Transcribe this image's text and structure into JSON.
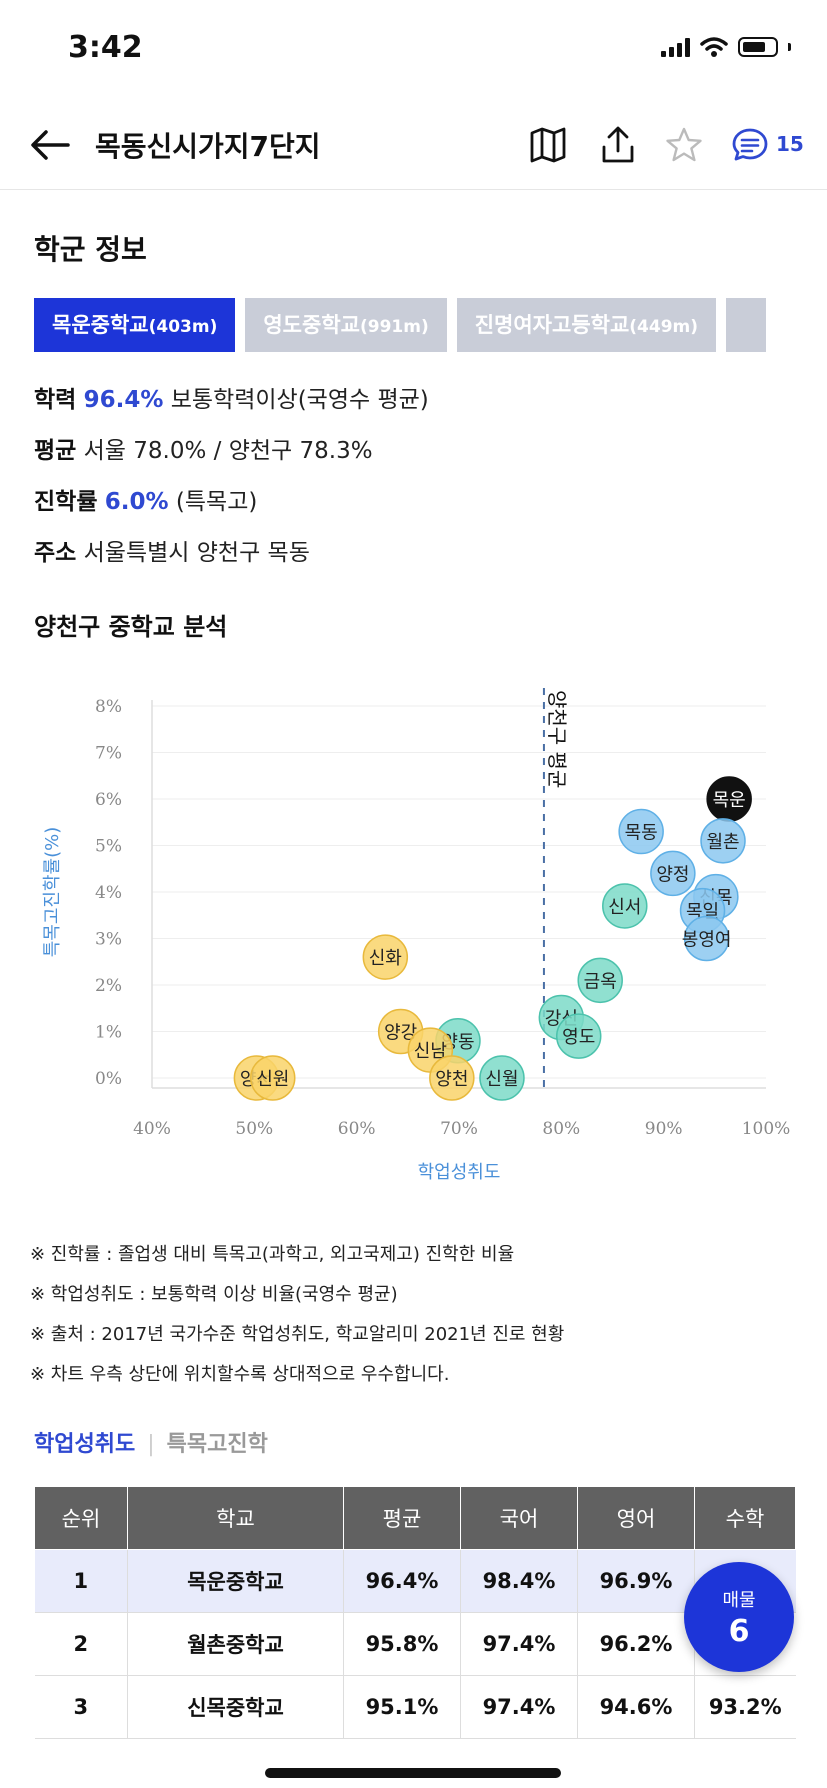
{
  "status": {
    "time": "3:42"
  },
  "header": {
    "title": "목동신시가지7단지",
    "chat_count": "15"
  },
  "section": {
    "title": "학군 정보"
  },
  "school_tabs": [
    {
      "name": "목운중학교",
      "dist": "(403m)"
    },
    {
      "name": "영도중학교",
      "dist": "(991m)"
    },
    {
      "name": "진명여자고등학교",
      "dist": "(449m)"
    }
  ],
  "info": {
    "academic_label": "학력",
    "academic_value": "96.4%",
    "academic_desc": "보통학력이상(국영수 평균)",
    "avg_label": "평균",
    "avg_value": "서울 78.0% / 양천구 78.3%",
    "advance_label": "진학률",
    "advance_value": "6.0%",
    "advance_desc": "(특목고)",
    "address_label": "주소",
    "address_value": "서울특별시 양천구 목동"
  },
  "analysis_title": "양천구 중학교 분석",
  "chart_data": {
    "type": "scatter",
    "xlabel": "학업성취도",
    "ylabel": "특목고진학률(%)",
    "xlim": [
      40,
      100
    ],
    "ylim": [
      0,
      8
    ],
    "x_ticks": [
      "40%",
      "50%",
      "60%",
      "70%",
      "80%",
      "90%",
      "100%"
    ],
    "y_ticks": [
      "0%",
      "1%",
      "2%",
      "3%",
      "4%",
      "5%",
      "6%",
      "7%",
      "8%"
    ],
    "avg_line": {
      "x": 78.3,
      "label": "양천구 평균"
    },
    "points": [
      {
        "name": "목운",
        "x": 96.4,
        "y": 6.0,
        "color": "#111111"
      },
      {
        "name": "월촌",
        "x": 95.8,
        "y": 5.1,
        "color": "#8cc8f0"
      },
      {
        "name": "목동",
        "x": 87.8,
        "y": 5.3,
        "color": "#8cc8f0"
      },
      {
        "name": "양정",
        "x": 90.9,
        "y": 4.4,
        "color": "#8cc8f0"
      },
      {
        "name": "신목",
        "x": 95.1,
        "y": 3.9,
        "color": "#8cc8f0"
      },
      {
        "name": "목일",
        "x": 93.8,
        "y": 3.6,
        "color": "#8cc8f0"
      },
      {
        "name": "봉영여",
        "x": 94.2,
        "y": 3.0,
        "color": "#8cc8f0"
      },
      {
        "name": "신서",
        "x": 86.2,
        "y": 3.7,
        "color": "#7ddbc8"
      },
      {
        "name": "금옥",
        "x": 83.8,
        "y": 2.1,
        "color": "#7ddbc8"
      },
      {
        "name": "강신",
        "x": 80.0,
        "y": 1.3,
        "color": "#7ddbc8"
      },
      {
        "name": "영도",
        "x": 81.7,
        "y": 0.9,
        "color": "#7ddbc8"
      },
      {
        "name": "신월",
        "x": 74.2,
        "y": 0.0,
        "color": "#7ddbc8"
      },
      {
        "name": "양동",
        "x": 69.9,
        "y": 0.8,
        "color": "#7ddbc8"
      },
      {
        "name": "신화",
        "x": 62.8,
        "y": 2.6,
        "color": "#f9d46a"
      },
      {
        "name": "양강",
        "x": 64.3,
        "y": 1.0,
        "color": "#f9d46a"
      },
      {
        "name": "신남",
        "x": 67.2,
        "y": 0.6,
        "color": "#f9d46a"
      },
      {
        "name": "양천",
        "x": 69.3,
        "y": 0.0,
        "color": "#f9d46a"
      },
      {
        "name": "양서",
        "x": 50.2,
        "y": 0.0,
        "color": "#f9d46a"
      },
      {
        "name": "신원",
        "x": 51.8,
        "y": 0.0,
        "color": "#f9d46a"
      }
    ]
  },
  "notes": [
    "※ 진학률 : 졸업생 대비 특목고(과학고, 외고국제고) 진학한 비율",
    "※ 학업성취도 : 보통학력 이상 비율(국영수 평균)",
    "※ 출처 : 2017년 국가수준 학업성취도, 학교알리미 2021년 진로 현황",
    "※ 차트 우측 상단에 위치할수록 상대적으로 우수합니다."
  ],
  "bottom_tabs": {
    "active": "학업성취도",
    "inactive": "특목고진학"
  },
  "table": {
    "headers": [
      "순위",
      "학교",
      "평균",
      "국어",
      "영어",
      "수학"
    ],
    "rows": [
      [
        "1",
        "목운중학교",
        "96.4%",
        "98.4%",
        "96.9%",
        ""
      ],
      [
        "2",
        "월촌중학교",
        "95.8%",
        "97.4%",
        "96.2%",
        ""
      ],
      [
        "3",
        "신목중학교",
        "95.1%",
        "97.4%",
        "94.6%",
        "93.2%"
      ]
    ]
  },
  "fab": {
    "label": "매물",
    "count": "6"
  }
}
